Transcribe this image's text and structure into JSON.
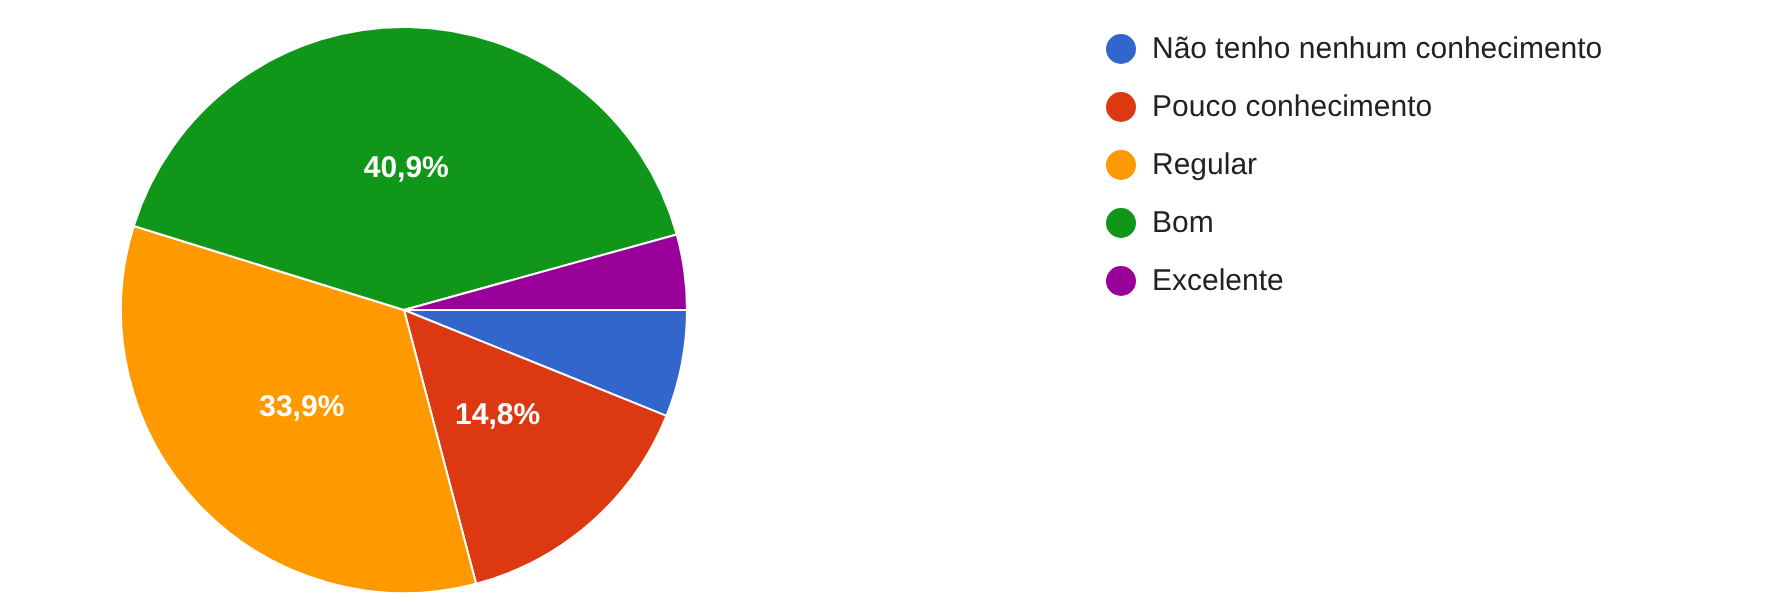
{
  "chart_data": {
    "type": "pie",
    "categories": [
      "Não tenho nenhum conhecimento",
      "Pouco conhecimento",
      "Regular",
      "Bom",
      "Excelente"
    ],
    "values": [
      6.1,
      14.8,
      33.9,
      40.9,
      4.3
    ],
    "colors": [
      "#3366cc",
      "#dc3912",
      "#ff9900",
      "#109618",
      "#990099"
    ],
    "value_labels": [
      null,
      "14,8%",
      "33,9%",
      "40,9%",
      null
    ],
    "legend": "top right"
  }
}
